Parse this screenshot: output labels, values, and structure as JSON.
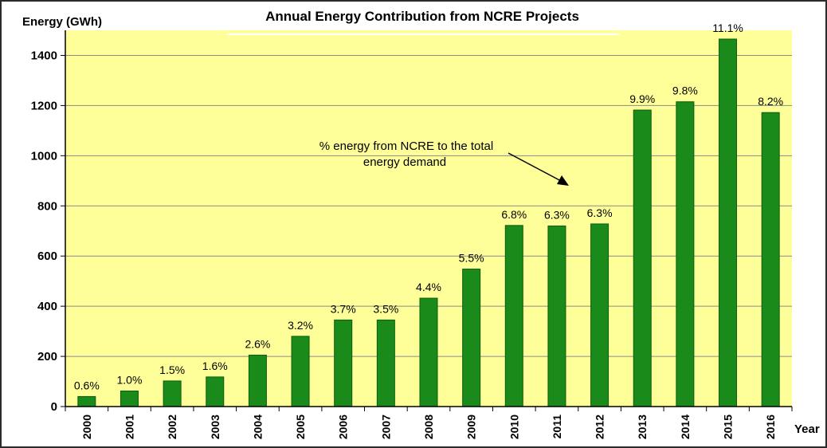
{
  "chart_data": {
    "type": "bar",
    "title": "Annual Energy Contribution from NCRE Projects",
    "ylabel": "Energy (GWh)",
    "xlabel": "Year",
    "ylim": [
      0,
      1500
    ],
    "yticks": [
      0,
      200,
      400,
      600,
      800,
      1000,
      1200,
      1400
    ],
    "grid": true,
    "categories": [
      "2000",
      "2001",
      "2002",
      "2003",
      "2004",
      "2005",
      "2006",
      "2007",
      "2008",
      "2009",
      "2010",
      "2011",
      "2012",
      "2013",
      "2014",
      "2015",
      "2016"
    ],
    "values": [
      40,
      62,
      102,
      118,
      205,
      280,
      345,
      345,
      432,
      548,
      722,
      720,
      728,
      1182,
      1215,
      1465,
      1172
    ],
    "data_labels": [
      "0.6%",
      "1.0%",
      "1.5%",
      "1.6%",
      "2.6%",
      "3.2%",
      "3.7%",
      "3.5%",
      "4.4%",
      "5.5%",
      "6.8%",
      "6.3%",
      "6.3%",
      "9.9%",
      "9.8%",
      "11.1%",
      "8.2%"
    ],
    "annotation": {
      "line1": "% energy from NCRE to the total",
      "line2": "energy demand"
    },
    "colors": {
      "plot_bg": "#FFFF99",
      "bar": "#1A8A1A",
      "bar_dark": "#0B5E0B",
      "grid": "#8A8A8A"
    }
  }
}
